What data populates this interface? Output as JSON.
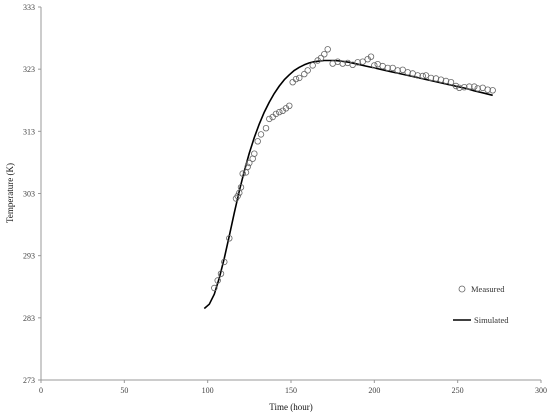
{
  "chart_data": {
    "type": "scatter",
    "title": "",
    "xlabel": "Time (hour)",
    "ylabel": "Temperature (K)",
    "xlim": [
      0,
      300
    ],
    "ylim": [
      273,
      333
    ],
    "xticks": [
      "0",
      "50",
      "100",
      "150",
      "200",
      "250",
      "300"
    ],
    "yticks": [
      "273",
      "283",
      "293",
      "303",
      "313",
      "323",
      "333"
    ],
    "grid": false,
    "legend_position": "right",
    "colors": {
      "axis": "#999999",
      "line": "#000000",
      "marker": "#666666"
    },
    "series": [
      {
        "name": "Measured",
        "kind": "scatter",
        "points": [
          [
            104,
            287.8
          ],
          [
            106,
            289.0
          ],
          [
            108,
            290.1
          ],
          [
            110,
            292.0
          ],
          [
            113,
            295.8
          ],
          [
            117,
            302.2
          ],
          [
            118,
            302.6
          ],
          [
            119,
            303.1
          ],
          [
            120,
            304.0
          ],
          [
            121,
            306.2
          ],
          [
            123,
            306.4
          ],
          [
            124,
            307.3
          ],
          [
            125,
            307.9
          ],
          [
            127,
            308.6
          ],
          [
            128,
            309.4
          ],
          [
            130,
            311.4
          ],
          [
            132,
            312.5
          ],
          [
            135,
            313.5
          ],
          [
            137,
            315.0
          ],
          [
            139,
            315.3
          ],
          [
            141,
            315.8
          ],
          [
            143,
            316.1
          ],
          [
            145,
            316.3
          ],
          [
            147,
            316.7
          ],
          [
            149,
            317.1
          ],
          [
            151,
            320.9
          ],
          [
            153,
            321.4
          ],
          [
            155,
            321.6
          ],
          [
            158,
            322.2
          ],
          [
            160,
            322.8
          ],
          [
            163,
            323.6
          ],
          [
            166,
            324.4
          ],
          [
            168,
            324.8
          ],
          [
            170,
            325.4
          ],
          [
            172,
            326.2
          ],
          [
            175,
            323.9
          ],
          [
            178,
            324.2
          ],
          [
            181,
            323.9
          ],
          [
            184,
            324.0
          ],
          [
            187,
            323.7
          ],
          [
            190,
            324.1
          ],
          [
            193,
            324.2
          ],
          [
            196,
            324.6
          ],
          [
            198,
            325.0
          ],
          [
            200,
            323.6
          ],
          [
            202,
            323.8
          ],
          [
            205,
            323.5
          ],
          [
            208,
            323.2
          ],
          [
            211,
            323.2
          ],
          [
            214,
            322.8
          ],
          [
            217,
            322.9
          ],
          [
            220,
            322.5
          ],
          [
            223,
            322.3
          ],
          [
            226,
            322.0
          ],
          [
            229,
            321.9
          ],
          [
            231,
            322.0
          ],
          [
            234,
            321.6
          ],
          [
            237,
            321.5
          ],
          [
            240,
            321.3
          ],
          [
            243,
            321.1
          ],
          [
            246,
            320.9
          ],
          [
            249,
            320.3
          ],
          [
            251,
            320.0
          ],
          [
            254,
            320.1
          ],
          [
            257,
            320.2
          ],
          [
            260,
            320.2
          ],
          [
            262,
            319.9
          ],
          [
            265,
            320.0
          ],
          [
            268,
            319.7
          ],
          [
            271,
            319.6
          ]
        ]
      },
      {
        "name": "Simulated",
        "kind": "line",
        "points": [
          [
            98,
            284.5
          ],
          [
            101,
            285.2
          ],
          [
            104,
            286.8
          ],
          [
            107,
            289.4
          ],
          [
            110,
            292.6
          ],
          [
            113,
            296.2
          ],
          [
            116,
            299.9
          ],
          [
            119,
            303.4
          ],
          [
            122,
            306.6
          ],
          [
            125,
            309.5
          ],
          [
            128,
            312.0
          ],
          [
            131,
            314.2
          ],
          [
            134,
            316.1
          ],
          [
            137,
            317.7
          ],
          [
            140,
            319.1
          ],
          [
            143,
            320.3
          ],
          [
            146,
            321.3
          ],
          [
            149,
            322.1
          ],
          [
            152,
            322.8
          ],
          [
            155,
            323.3
          ],
          [
            158,
            323.7
          ],
          [
            161,
            324.0
          ],
          [
            164,
            324.2
          ],
          [
            167,
            324.3
          ],
          [
            170,
            324.4
          ],
          [
            173,
            324.4
          ],
          [
            176,
            324.4
          ],
          [
            180,
            324.3
          ],
          [
            185,
            324.1
          ],
          [
            190,
            323.8
          ],
          [
            195,
            323.5
          ],
          [
            200,
            323.2
          ],
          [
            205,
            322.9
          ],
          [
            210,
            322.6
          ],
          [
            215,
            322.3
          ],
          [
            220,
            322.0
          ],
          [
            225,
            321.7
          ],
          [
            230,
            321.4
          ],
          [
            235,
            321.1
          ],
          [
            240,
            320.8
          ],
          [
            245,
            320.5
          ],
          [
            250,
            320.2
          ],
          [
            255,
            319.9
          ],
          [
            260,
            319.5
          ],
          [
            265,
            319.2
          ],
          [
            271,
            318.8
          ]
        ]
      }
    ]
  }
}
